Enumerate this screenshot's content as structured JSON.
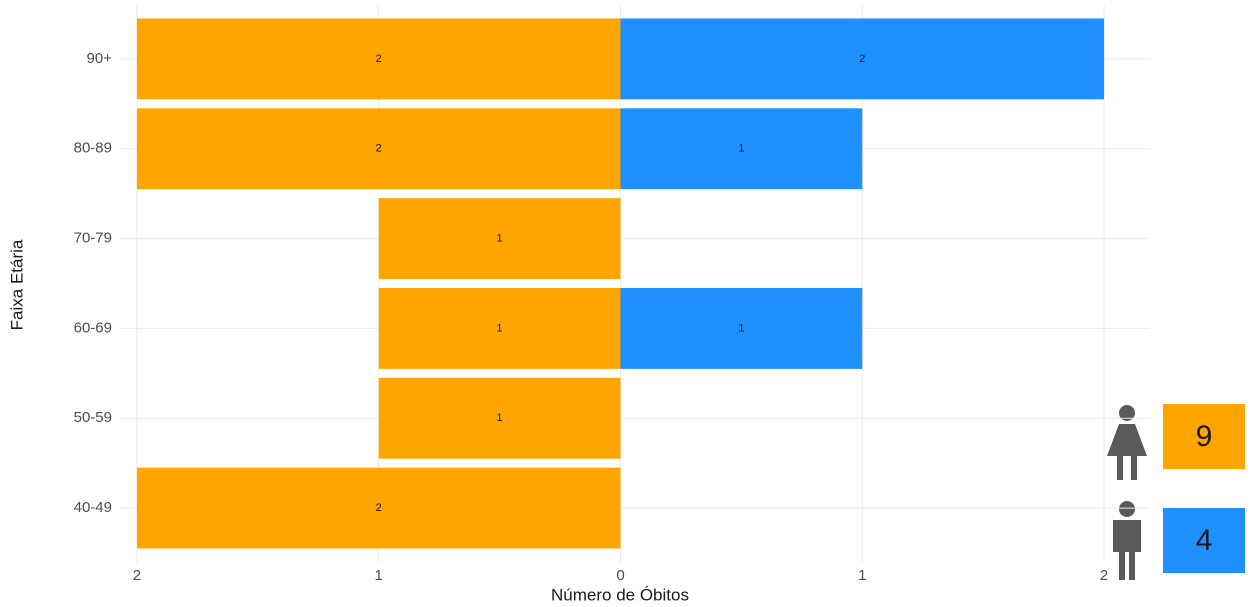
{
  "chart_data": {
    "type": "bar",
    "orientation": "horizontal",
    "xlabel": "Número de Óbitos",
    "ylabel": "Faixa Etária",
    "categories": [
      "40-49",
      "50-59",
      "60-69",
      "70-79",
      "80-89",
      "90+"
    ],
    "series": [
      {
        "color": "#ffa500",
        "values": [
          -2,
          -1,
          -1,
          -1,
          -2,
          -2
        ],
        "value_labels": [
          "2",
          "1",
          "1",
          "1",
          "2",
          "2"
        ],
        "total": 9
      },
      {
        "color": "#1e90ff",
        "values": [
          null,
          null,
          1,
          null,
          1,
          2
        ],
        "value_labels": [
          null,
          null,
          "1",
          null,
          "1",
          "2"
        ],
        "total": 4
      }
    ],
    "xlim": [
      -2.07,
      2.19
    ],
    "xticks": [
      {
        "value": -2,
        "label": "2"
      },
      {
        "value": -1,
        "label": "1"
      },
      0,
      1,
      2
    ],
    "grid": true
  }
}
